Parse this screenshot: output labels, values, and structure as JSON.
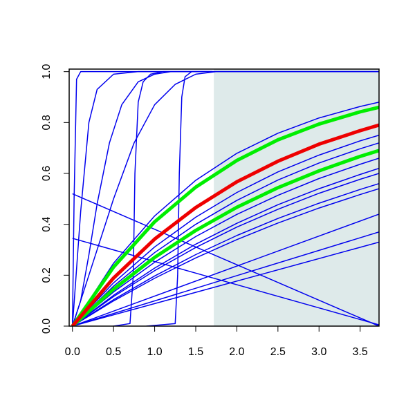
{
  "chart_data": {
    "type": "line",
    "xlim": [
      -0.04,
      3.73
    ],
    "ylim": [
      0,
      1.01
    ],
    "xticks": [
      {
        "value": 0,
        "label": "0.0"
      },
      0.5,
      {
        "value": 1,
        "label": "1.0"
      },
      1.5,
      {
        "value": 2,
        "label": "2.0"
      },
      2.5,
      {
        "value": 3,
        "label": "3.0"
      },
      3.5
    ],
    "yticks": [
      {
        "value": 0,
        "label": "0.0"
      },
      0.2,
      0.4,
      0.6,
      0.8,
      {
        "value": 1,
        "label": "1.0"
      }
    ],
    "shaded_region": {
      "from": 1.72,
      "to": 3.73,
      "color": "#deeaea"
    },
    "series": [
      {
        "color": "#0000ee",
        "line_width": 1.5,
        "x": [
          0,
          0.02,
          0.05,
          0.1,
          3.73
        ],
        "values": [
          0,
          0.5,
          0.97,
          1,
          1
        ]
      },
      {
        "color": "#0000ee",
        "line_width": 1.5,
        "x": [
          0,
          0.1,
          0.2,
          0.3,
          0.5,
          0.8,
          1.0,
          1.7
        ],
        "values": [
          0,
          0.45,
          0.8,
          0.93,
          0.99,
          1,
          1,
          1
        ]
      },
      {
        "color": "#0000ee",
        "line_width": 1.5,
        "x": [
          0,
          0.1,
          0.2,
          0.3,
          0.45,
          0.6,
          0.8,
          1.0,
          1.2
        ],
        "values": [
          0,
          0.1,
          0.28,
          0.48,
          0.72,
          0.87,
          0.96,
          0.99,
          1
        ]
      },
      {
        "color": "#0000ee",
        "line_width": 1.5,
        "x": [
          0,
          0.25,
          0.5,
          0.75,
          1,
          1.25,
          1.5,
          1.75
        ],
        "values": [
          0,
          0.25,
          0.5,
          0.72,
          0.87,
          0.95,
          0.99,
          1
        ]
      },
      {
        "color": "#0000ee",
        "line_width": 1.5,
        "x": [
          0.5,
          0.7,
          0.74,
          0.76,
          0.8,
          0.86,
          0.95,
          1.1,
          1.7
        ],
        "values": [
          0,
          0.01,
          0.2,
          0.6,
          0.88,
          0.96,
          0.99,
          1,
          1
        ]
      },
      {
        "color": "#0000ee",
        "line_width": 1.5,
        "x": [
          0.9,
          1.25,
          1.28,
          1.3,
          1.33,
          1.37,
          1.45,
          1.7
        ],
        "values": [
          0,
          0.01,
          0.2,
          0.6,
          0.9,
          0.98,
          1,
          1
        ]
      },
      {
        "color": "#0000ee",
        "line_width": 1.5,
        "x": [
          1.7,
          3.73
        ],
        "values": [
          1,
          1
        ]
      },
      {
        "color": "#0000ee",
        "line_width": 1.5,
        "x": [
          0,
          3.73
        ],
        "values": [
          0.52,
          0
        ]
      },
      {
        "color": "#0000ee",
        "line_width": 1.5,
        "x": [
          0,
          3.73
        ],
        "values": [
          0.345,
          0.005
        ]
      },
      {
        "color": "#0000ee",
        "line_width": 1.5,
        "x": [
          0,
          3.73
        ],
        "values": [
          0,
          0.44
        ]
      },
      {
        "color": "#0000ee",
        "line_width": 1.5,
        "x": [
          0,
          3.73
        ],
        "values": [
          0,
          0.37
        ]
      },
      {
        "color": "#0000ee",
        "line_width": 1.5,
        "x": [
          0,
          3.73
        ],
        "values": [
          0,
          0.33
        ]
      },
      {
        "color": "#0000ee",
        "line_width": 1.5,
        "x": [
          0,
          0.5,
          1,
          1.5,
          2,
          2.5,
          3,
          3.5,
          3.73
        ],
        "values": [
          0,
          0.247,
          0.433,
          0.573,
          0.679,
          0.758,
          0.818,
          0.863,
          0.88
        ]
      },
      {
        "color": "#0000ee",
        "line_width": 1.5,
        "x": [
          0,
          0.5,
          1,
          1.5,
          2,
          2.5,
          3,
          3.5,
          3.73
        ],
        "values": [
          0,
          0.17,
          0.311,
          0.428,
          0.525,
          0.606,
          0.672,
          0.728,
          0.75
        ]
      },
      {
        "color": "#0000ee",
        "line_width": 1.5,
        "x": [
          0,
          0.5,
          1,
          1.5,
          2,
          2.5,
          3,
          3.5,
          3.73
        ],
        "values": [
          0,
          0.157,
          0.289,
          0.4,
          0.494,
          0.574,
          0.641,
          0.697,
          0.72
        ]
      },
      {
        "color": "#0000ee",
        "line_width": 1.5,
        "x": [
          0,
          0.5,
          1,
          1.5,
          2,
          2.5,
          3,
          3.5,
          3.73
        ],
        "values": [
          0,
          0.134,
          0.251,
          0.352,
          0.439,
          0.514,
          0.58,
          0.636,
          0.66
        ]
      },
      {
        "color": "#0000ee",
        "line_width": 1.5,
        "x": [
          0,
          0.5,
          1,
          1.5,
          2,
          2.5,
          3,
          3.5,
          3.73
        ],
        "values": [
          0,
          0.121,
          0.228,
          0.322,
          0.404,
          0.477,
          0.54,
          0.596,
          0.62
        ]
      },
      {
        "color": "#0000ee",
        "line_width": 1.5,
        "x": [
          0,
          0.5,
          1,
          1.5,
          2,
          2.5,
          3,
          3.5,
          3.73
        ],
        "values": [
          0,
          0.116,
          0.218,
          0.309,
          0.389,
          0.459,
          0.522,
          0.577,
          0.6
        ]
      },
      {
        "color": "#0000ee",
        "line_width": 1.5,
        "x": [
          0,
          0.5,
          1,
          1.5,
          2,
          2.5,
          3,
          3.5,
          3.73
        ],
        "values": [
          0,
          0.104,
          0.197,
          0.281,
          0.356,
          0.423,
          0.483,
          0.537,
          0.56
        ]
      },
      {
        "color": "#0000ee",
        "line_width": 1.5,
        "x": [
          0,
          0.5,
          1,
          1.5,
          2,
          2.5,
          3,
          3.5,
          3.73
        ],
        "values": [
          0,
          0.099,
          0.188,
          0.268,
          0.34,
          0.405,
          0.464,
          0.517,
          0.54
        ]
      },
      {
        "color": "#00ee00",
        "line_width": 5,
        "x": [
          0,
          0.5,
          1,
          1.5,
          2,
          2.5,
          3,
          3.5,
          3.73
        ],
        "values": [
          0,
          0.232,
          0.41,
          0.546,
          0.651,
          0.732,
          0.794,
          0.842,
          0.86
        ]
      },
      {
        "color": "#00ee00",
        "line_width": 5,
        "x": [
          0,
          0.5,
          1,
          1.5,
          2,
          2.5,
          3,
          3.5,
          3.73
        ],
        "values": [
          0,
          0.145,
          0.27,
          0.376,
          0.467,
          0.544,
          0.61,
          0.667,
          0.69
        ]
      },
      {
        "color": "#ee0000",
        "line_width": 5,
        "x": [
          0,
          0.5,
          1,
          1.5,
          2,
          2.5,
          3,
          3.5,
          3.73
        ],
        "values": [
          0,
          0.189,
          0.342,
          0.466,
          0.567,
          0.648,
          0.715,
          0.768,
          0.79
        ]
      }
    ]
  }
}
